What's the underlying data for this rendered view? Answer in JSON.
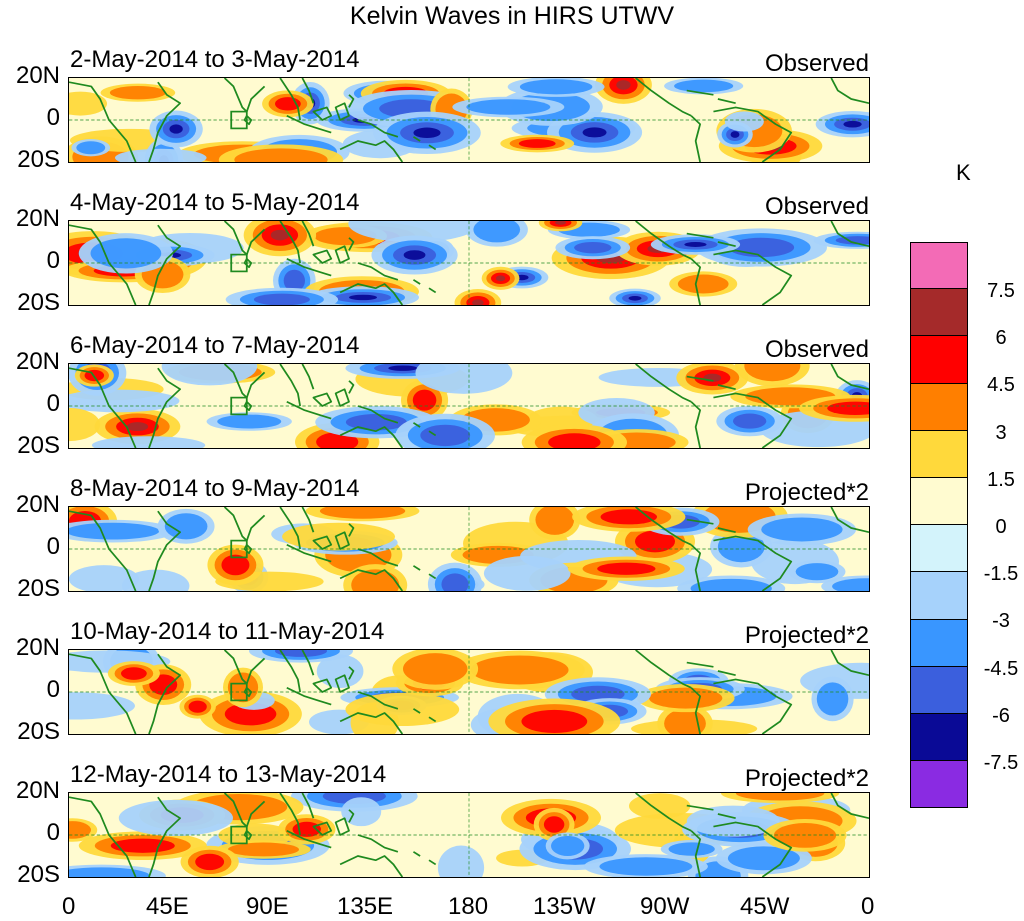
{
  "title": "Kelvin Waves in HIRS UTWV",
  "latitude_labels": [
    "20N",
    "0",
    "20S"
  ],
  "longitude_labels": [
    "0",
    "45E",
    "90E",
    "135E",
    "180",
    "135W",
    "90W",
    "45W",
    "0"
  ],
  "panels": [
    {
      "date_range": "2-May-2014 to 3-May-2014",
      "type": "Observed"
    },
    {
      "date_range": "4-May-2014 to 5-May-2014",
      "type": "Observed"
    },
    {
      "date_range": "6-May-2014 to 7-May-2014",
      "type": "Observed"
    },
    {
      "date_range": "8-May-2014 to 9-May-2014",
      "type": "Projected*2"
    },
    {
      "date_range": "10-May-2014 to 11-May-2014",
      "type": "Projected*2"
    },
    {
      "date_range": "12-May-2014 to 13-May-2014",
      "type": "Projected*2"
    }
  ],
  "colorbar": {
    "unit": "K",
    "labels": [
      "7.5",
      "6",
      "4.5",
      "3",
      "1.5",
      "0",
      "-1.5",
      "-3",
      "-4.5",
      "-6",
      "-7.5"
    ],
    "colors": [
      "#f36bb6",
      "#a52a2a",
      "#ff0000",
      "#ff7f00",
      "#ffd93b",
      "#fffbd0",
      "#d3f3fb",
      "#a6d2fb",
      "#3996ff",
      "#3b5fdd",
      "#0a0a96",
      "#8a2be2"
    ]
  },
  "map_colors": {
    "coastline": "#1f8a1f",
    "equator_line": "#1f8a1f"
  }
}
